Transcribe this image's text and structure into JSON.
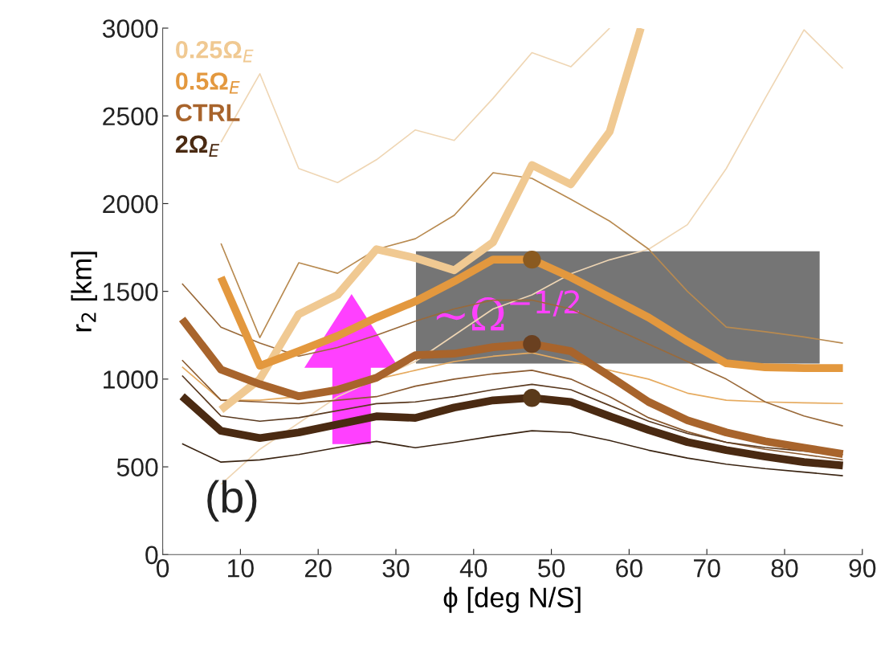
{
  "chart_data": {
    "type": "line",
    "xlabel": "ϕ [deg N/S]",
    "ylabel": "r$_{2}$ [km]",
    "x": [
      2.5,
      7.5,
      12.5,
      17.5,
      22.5,
      27.5,
      32.5,
      37.5,
      42.5,
      47.5,
      52.5,
      57.5,
      62.5,
      67.5,
      72.5,
      77.5,
      82.5,
      87.5
    ],
    "xlim": [
      0,
      90
    ],
    "xticks": [
      0,
      10,
      20,
      30,
      40,
      50,
      60,
      70,
      80,
      90
    ],
    "ylim": [
      0,
      3000
    ],
    "yticks": [
      0,
      500,
      1000,
      1500,
      2000,
      2500,
      3000
    ],
    "grid": false,
    "legend": "top left",
    "marker": "none",
    "line_style": "solid",
    "series": [
      {
        "color": "#efd6b4",
        "values": [
          null,
          2350,
          2740,
          2200,
          2120,
          2250,
          2420,
          2360,
          2600,
          2860,
          2780,
          3000,
          null,
          null,
          null,
          null,
          null,
          null
        ]
      },
      {
        "color": "#efd6b4",
        "values": [
          null,
          400,
          600,
          750,
          900,
          1000,
          1100,
          1250,
          1400,
          1480,
          1600,
          1680,
          1740,
          1880,
          2200,
          2600,
          2990,
          2770
        ]
      },
      {
        "color": "#b88a50",
        "values": [
          null,
          1773,
          1237,
          1663,
          1603,
          1740,
          1800,
          1933,
          2176,
          2144,
          2025,
          1900,
          1741,
          1500,
          1296,
          1270,
          1240,
          1205
        ]
      },
      {
        "color": "#e6ab60",
        "values": [
          1070,
          880,
          880,
          900,
          960,
          1000,
          1050,
          1100,
          1130,
          1150,
          1100,
          1050,
          1000,
          920,
          880,
          870,
          865,
          861
        ]
      },
      {
        "color": "#9a6a3a",
        "values": [
          1544,
          1296,
          1205,
          1131,
          1180,
          1250,
          1330,
          1400,
          1450,
          1450,
          1400,
          1300,
          1200,
          1100,
          1000,
          870,
          790,
          733
        ]
      },
      {
        "color": "#8a5a30",
        "values": [
          1108,
          880,
          870,
          860,
          880,
          900,
          960,
          1000,
          1030,
          1050,
          1000,
          900,
          780,
          700,
          640,
          600,
          570,
          540
        ]
      },
      {
        "color": "#5a3a20",
        "values": [
          1020,
          790,
          760,
          780,
          820,
          860,
          870,
          900,
          940,
          970,
          940,
          850,
          760,
          690,
          640,
          610,
          590,
          570
        ]
      },
      {
        "color": "#3a2412",
        "values": [
          632,
          527,
          540,
          570,
          610,
          645,
          609,
          640,
          675,
          706,
          696,
          650,
          595,
          550,
          515,
          490,
          470,
          449
        ]
      },
      {
        "name": "0.25Ω$_{E}$",
        "color": "#f0c992",
        "x": [
          7.5,
          12.5,
          17.5,
          22.5,
          27.5,
          32.5,
          37.5,
          42.5,
          47.5,
          52.5,
          57.5,
          61.5
        ],
        "values": [
          825,
          1000,
          1370,
          1480,
          1740,
          1690,
          1620,
          1780,
          2220,
          2110,
          2410,
          3000
        ]
      },
      {
        "name": "0.5Ω$_{E}$",
        "color": "#e3983e",
        "values": [
          null,
          1580,
          1076,
          1159,
          1246,
          1351,
          1443,
          1557,
          1681,
          1681,
          1580,
          1466,
          1351,
          1214,
          1090,
          1067,
          1063,
          1063
        ]
      },
      {
        "name": "CTRL",
        "color": "#a8642c",
        "values": [
          1342,
          1054,
          971,
          902,
          939,
          1008,
          1136,
          1145,
          1182,
          1200,
          1159,
          1017,
          870,
          765,
          696,
          646,
          609,
          573
        ]
      },
      {
        "name": "2Ω$_{E}$",
        "color": "#4a2a12",
        "values": [
          902,
          705,
          664,
          696,
          742,
          788,
          779,
          838,
          879,
          893,
          870,
          788,
          710,
          641,
          595,
          559,
          527,
          508
        ]
      },
      {
        "type": "scatter",
        "marker": "circle",
        "x": [
          47.5,
          47.5,
          47.5
        ],
        "values": [
          1681,
          1200,
          893
        ],
        "colors": [
          "#8a5a20",
          "#6a4020",
          "#5a3a1a"
        ]
      }
    ],
    "annotations": [
      "(b)",
      "~Ω$^{−1/2}$"
    ]
  }
}
